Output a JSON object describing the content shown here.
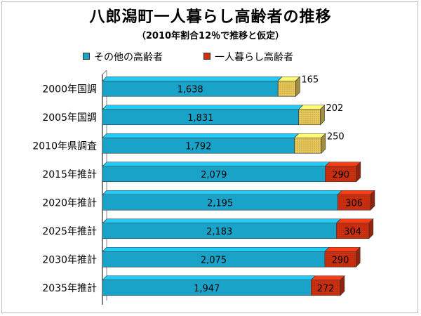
{
  "chart_data": {
    "type": "bar",
    "orientation": "horizontal",
    "stacked": true,
    "style": "3d",
    "title": "八郎潟町一人暮らし高齢者の推移",
    "subtitle": "（2010年割合12％で推移と仮定）",
    "categories": [
      "2000年国調",
      "2005年国調",
      "2010年県調査",
      "2015年推計",
      "2020年推計",
      "2025年推計",
      "2030年推計",
      "2035年推計"
    ],
    "series": [
      {
        "name": "その他の高齢者",
        "color": "#1aa3c8",
        "values": [
          1638,
          1831,
          1792,
          2079,
          2195,
          2183,
          2075,
          1947
        ],
        "labels": [
          "1,638",
          "1,831",
          "1,792",
          "2,079",
          "2,195",
          "2,183",
          "2,075",
          "1,947"
        ]
      },
      {
        "name": "一人暮らし高齢者",
        "colors": [
          "#e8c95a",
          "#e8c95a",
          "#e8c95a",
          "#d03010",
          "#d03010",
          "#d03010",
          "#d03010",
          "#d03010"
        ],
        "values": [
          165,
          202,
          250,
          290,
          306,
          304,
          290,
          272
        ],
        "labels": [
          "165",
          "202",
          "250",
          "290",
          "306",
          "304",
          "290",
          "272"
        ]
      }
    ],
    "xlim": [
      0,
      2750
    ],
    "grid": false,
    "legend_position": "top"
  }
}
